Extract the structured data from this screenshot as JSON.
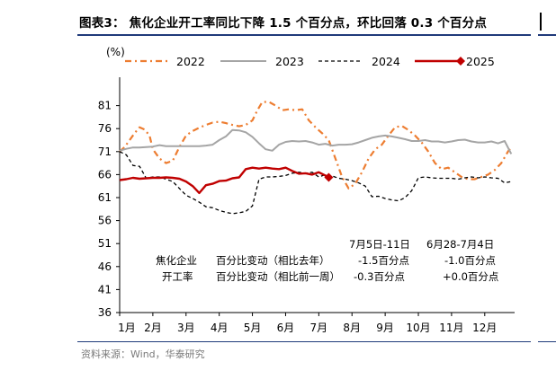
{
  "figure": {
    "title": "图表3： 焦化企业开工率同比下降 1.5 个百分点，环比回落 0.3 个百分点",
    "source": "资料来源：Wind，华泰研究"
  },
  "chart_data": {
    "type": "line",
    "ylabel": "(%)",
    "ylim": [
      36,
      86
    ],
    "yticks": [
      36,
      41,
      46,
      51,
      56,
      61,
      66,
      71,
      76,
      81
    ],
    "categories": [
      "1月",
      "2月",
      "3月",
      "4月",
      "5月",
      "6月",
      "7月",
      "8月",
      "9月",
      "10月",
      "11月",
      "12月"
    ],
    "legend_position": "top",
    "colors": {
      "2022": "#ED7D31",
      "2023": "#A5A5A5",
      "2024": "#000000",
      "2025": "#C00000"
    },
    "series": [
      {
        "name": "2022",
        "style": "dash-dot",
        "x": [
          1.0,
          1.15,
          1.3,
          1.45,
          1.6,
          1.75,
          1.9,
          2.0,
          2.2,
          2.4,
          2.6,
          2.8,
          3.0,
          3.2,
          3.4,
          3.6,
          3.8,
          4.0,
          4.2,
          4.4,
          4.6,
          4.8,
          5.0,
          5.15,
          5.3,
          5.5,
          5.7,
          5.9,
          6.1,
          6.3,
          6.5,
          6.7,
          6.9,
          7.1,
          7.3,
          7.5,
          7.7,
          7.9,
          8.1,
          8.3,
          8.5,
          8.7,
          8.9,
          9.1,
          9.3,
          9.5,
          9.7,
          9.9,
          10.1,
          10.3,
          10.5,
          10.7,
          10.9,
          11.1,
          11.3,
          11.5,
          11.7,
          11.9,
          12.1,
          12.3,
          12.5,
          12.7,
          12.8
        ],
        "values": [
          71.0,
          72.0,
          73.5,
          75.0,
          76.3,
          75.8,
          74.5,
          71.5,
          69.5,
          68.5,
          69.0,
          72.0,
          74.5,
          75.5,
          76.2,
          76.8,
          77.3,
          77.5,
          77.2,
          76.8,
          76.5,
          76.8,
          77.8,
          80.0,
          81.8,
          81.8,
          81.0,
          80.0,
          80.2,
          80.0,
          80.2,
          77.8,
          76.3,
          75.0,
          73.5,
          69.5,
          65.5,
          63.0,
          64.0,
          66.5,
          69.5,
          71.5,
          72.5,
          74.5,
          76.3,
          76.6,
          75.7,
          74.5,
          73.0,
          71.0,
          68.5,
          67.2,
          67.5,
          66.5,
          65.5,
          65.0,
          65.0,
          65.5,
          66.0,
          67.0,
          68.5,
          71.0,
          72.0
        ]
      },
      {
        "name": "2023",
        "style": "solid",
        "x": [
          1.0,
          1.2,
          1.4,
          1.6,
          1.8,
          2.0,
          2.2,
          2.4,
          2.6,
          2.8,
          3.0,
          3.2,
          3.4,
          3.6,
          3.8,
          4.0,
          4.2,
          4.4,
          4.6,
          4.8,
          5.0,
          5.2,
          5.4,
          5.6,
          5.8,
          6.0,
          6.2,
          6.4,
          6.6,
          6.8,
          7.0,
          7.2,
          7.4,
          7.6,
          7.8,
          8.0,
          8.2,
          8.4,
          8.6,
          8.8,
          9.0,
          9.2,
          9.4,
          9.6,
          9.8,
          10.0,
          10.2,
          10.4,
          10.6,
          10.8,
          11.0,
          11.2,
          11.4,
          11.6,
          11.8,
          12.0,
          12.2,
          12.4,
          12.6,
          12.8
        ],
        "values": [
          71.2,
          71.6,
          71.9,
          71.9,
          72.0,
          72.1,
          72.4,
          72.2,
          72.2,
          72.2,
          72.2,
          72.2,
          72.2,
          72.3,
          72.5,
          73.5,
          74.3,
          75.7,
          75.6,
          75.2,
          74.2,
          72.8,
          71.5,
          71.2,
          72.5,
          73.1,
          73.3,
          73.2,
          73.3,
          73.0,
          72.5,
          72.7,
          72.3,
          72.5,
          72.5,
          72.6,
          73.0,
          73.5,
          74.0,
          74.3,
          74.5,
          74.3,
          74.0,
          73.7,
          73.3,
          73.3,
          73.5,
          73.2,
          73.2,
          73.0,
          73.2,
          73.5,
          73.6,
          73.2,
          73.0,
          73.0,
          73.2,
          72.8,
          73.3,
          70.5
        ]
      },
      {
        "name": "2024",
        "style": "dashed",
        "x": [
          1.0,
          1.2,
          1.4,
          1.6,
          1.8,
          2.0,
          2.2,
          2.4,
          2.6,
          2.8,
          3.0,
          3.2,
          3.4,
          3.6,
          3.8,
          4.0,
          4.2,
          4.4,
          4.6,
          4.8,
          5.0,
          5.2,
          5.4,
          5.6,
          5.8,
          6.0,
          6.2,
          6.4,
          6.6,
          6.8,
          7.0,
          7.2,
          7.4,
          7.6,
          7.8,
          8.0,
          8.2,
          8.4,
          8.6,
          8.8,
          9.0,
          9.2,
          9.4,
          9.6,
          9.8,
          10.0,
          10.2,
          10.4,
          10.6,
          10.8,
          11.0,
          11.2,
          11.4,
          11.6,
          11.8,
          12.0,
          12.2,
          12.4,
          12.6,
          12.8
        ],
        "values": [
          71.0,
          70.3,
          68.0,
          67.8,
          65.2,
          65.5,
          65.5,
          65.0,
          64.5,
          63.0,
          61.5,
          60.8,
          60.0,
          59.0,
          58.8,
          58.2,
          57.8,
          57.5,
          57.7,
          58.0,
          59.2,
          65.0,
          65.5,
          65.5,
          65.6,
          65.8,
          66.3,
          66.5,
          66.3,
          66.5,
          65.5,
          66.0,
          65.7,
          65.2,
          65.0,
          64.7,
          64.2,
          63.5,
          61.2,
          61.3,
          60.8,
          60.5,
          60.3,
          61.0,
          62.5,
          65.3,
          65.5,
          65.3,
          65.2,
          65.2,
          65.2,
          65.0,
          65.3,
          65.5,
          65.3,
          65.5,
          65.3,
          65.2,
          64.2,
          64.5
        ]
      },
      {
        "name": "2025",
        "style": "solid-bold",
        "x": [
          1.0,
          1.2,
          1.4,
          1.6,
          1.8,
          2.0,
          2.2,
          2.4,
          2.6,
          2.8,
          3.0,
          3.2,
          3.4,
          3.6,
          3.8,
          4.0,
          4.2,
          4.4,
          4.6,
          4.8,
          5.0,
          5.2,
          5.4,
          5.6,
          5.8,
          6.0,
          6.2,
          6.4,
          6.6,
          6.8,
          7.0,
          7.2,
          7.3
        ],
        "values": [
          64.8,
          65.0,
          65.3,
          65.1,
          65.2,
          65.3,
          65.3,
          65.4,
          65.3,
          65.1,
          64.5,
          63.5,
          62.0,
          63.7,
          64.0,
          64.6,
          64.7,
          65.2,
          65.4,
          67.2,
          67.5,
          67.3,
          67.5,
          67.3,
          67.2,
          67.5,
          66.8,
          66.2,
          66.3,
          66.0,
          66.5,
          65.8,
          65.4
        ]
      }
    ],
    "marker_2025": {
      "x": 7.3,
      "y": 65.4
    },
    "annotation": {
      "col1_header": "7月5日-11日",
      "col2_header": "6月28-7月4日",
      "row1_label_a": "焦化企业",
      "row1_label_b": "百分比变动（相比去年）",
      "row1_v1": "-1.5百分点",
      "row1_v2": "-1.0百分点",
      "row2_label_a": "开工率",
      "row2_label_b": "百分比变动（相比前一周）",
      "row2_v1": "-0.3百分点",
      "row2_v2": "+0.0百分点"
    }
  }
}
